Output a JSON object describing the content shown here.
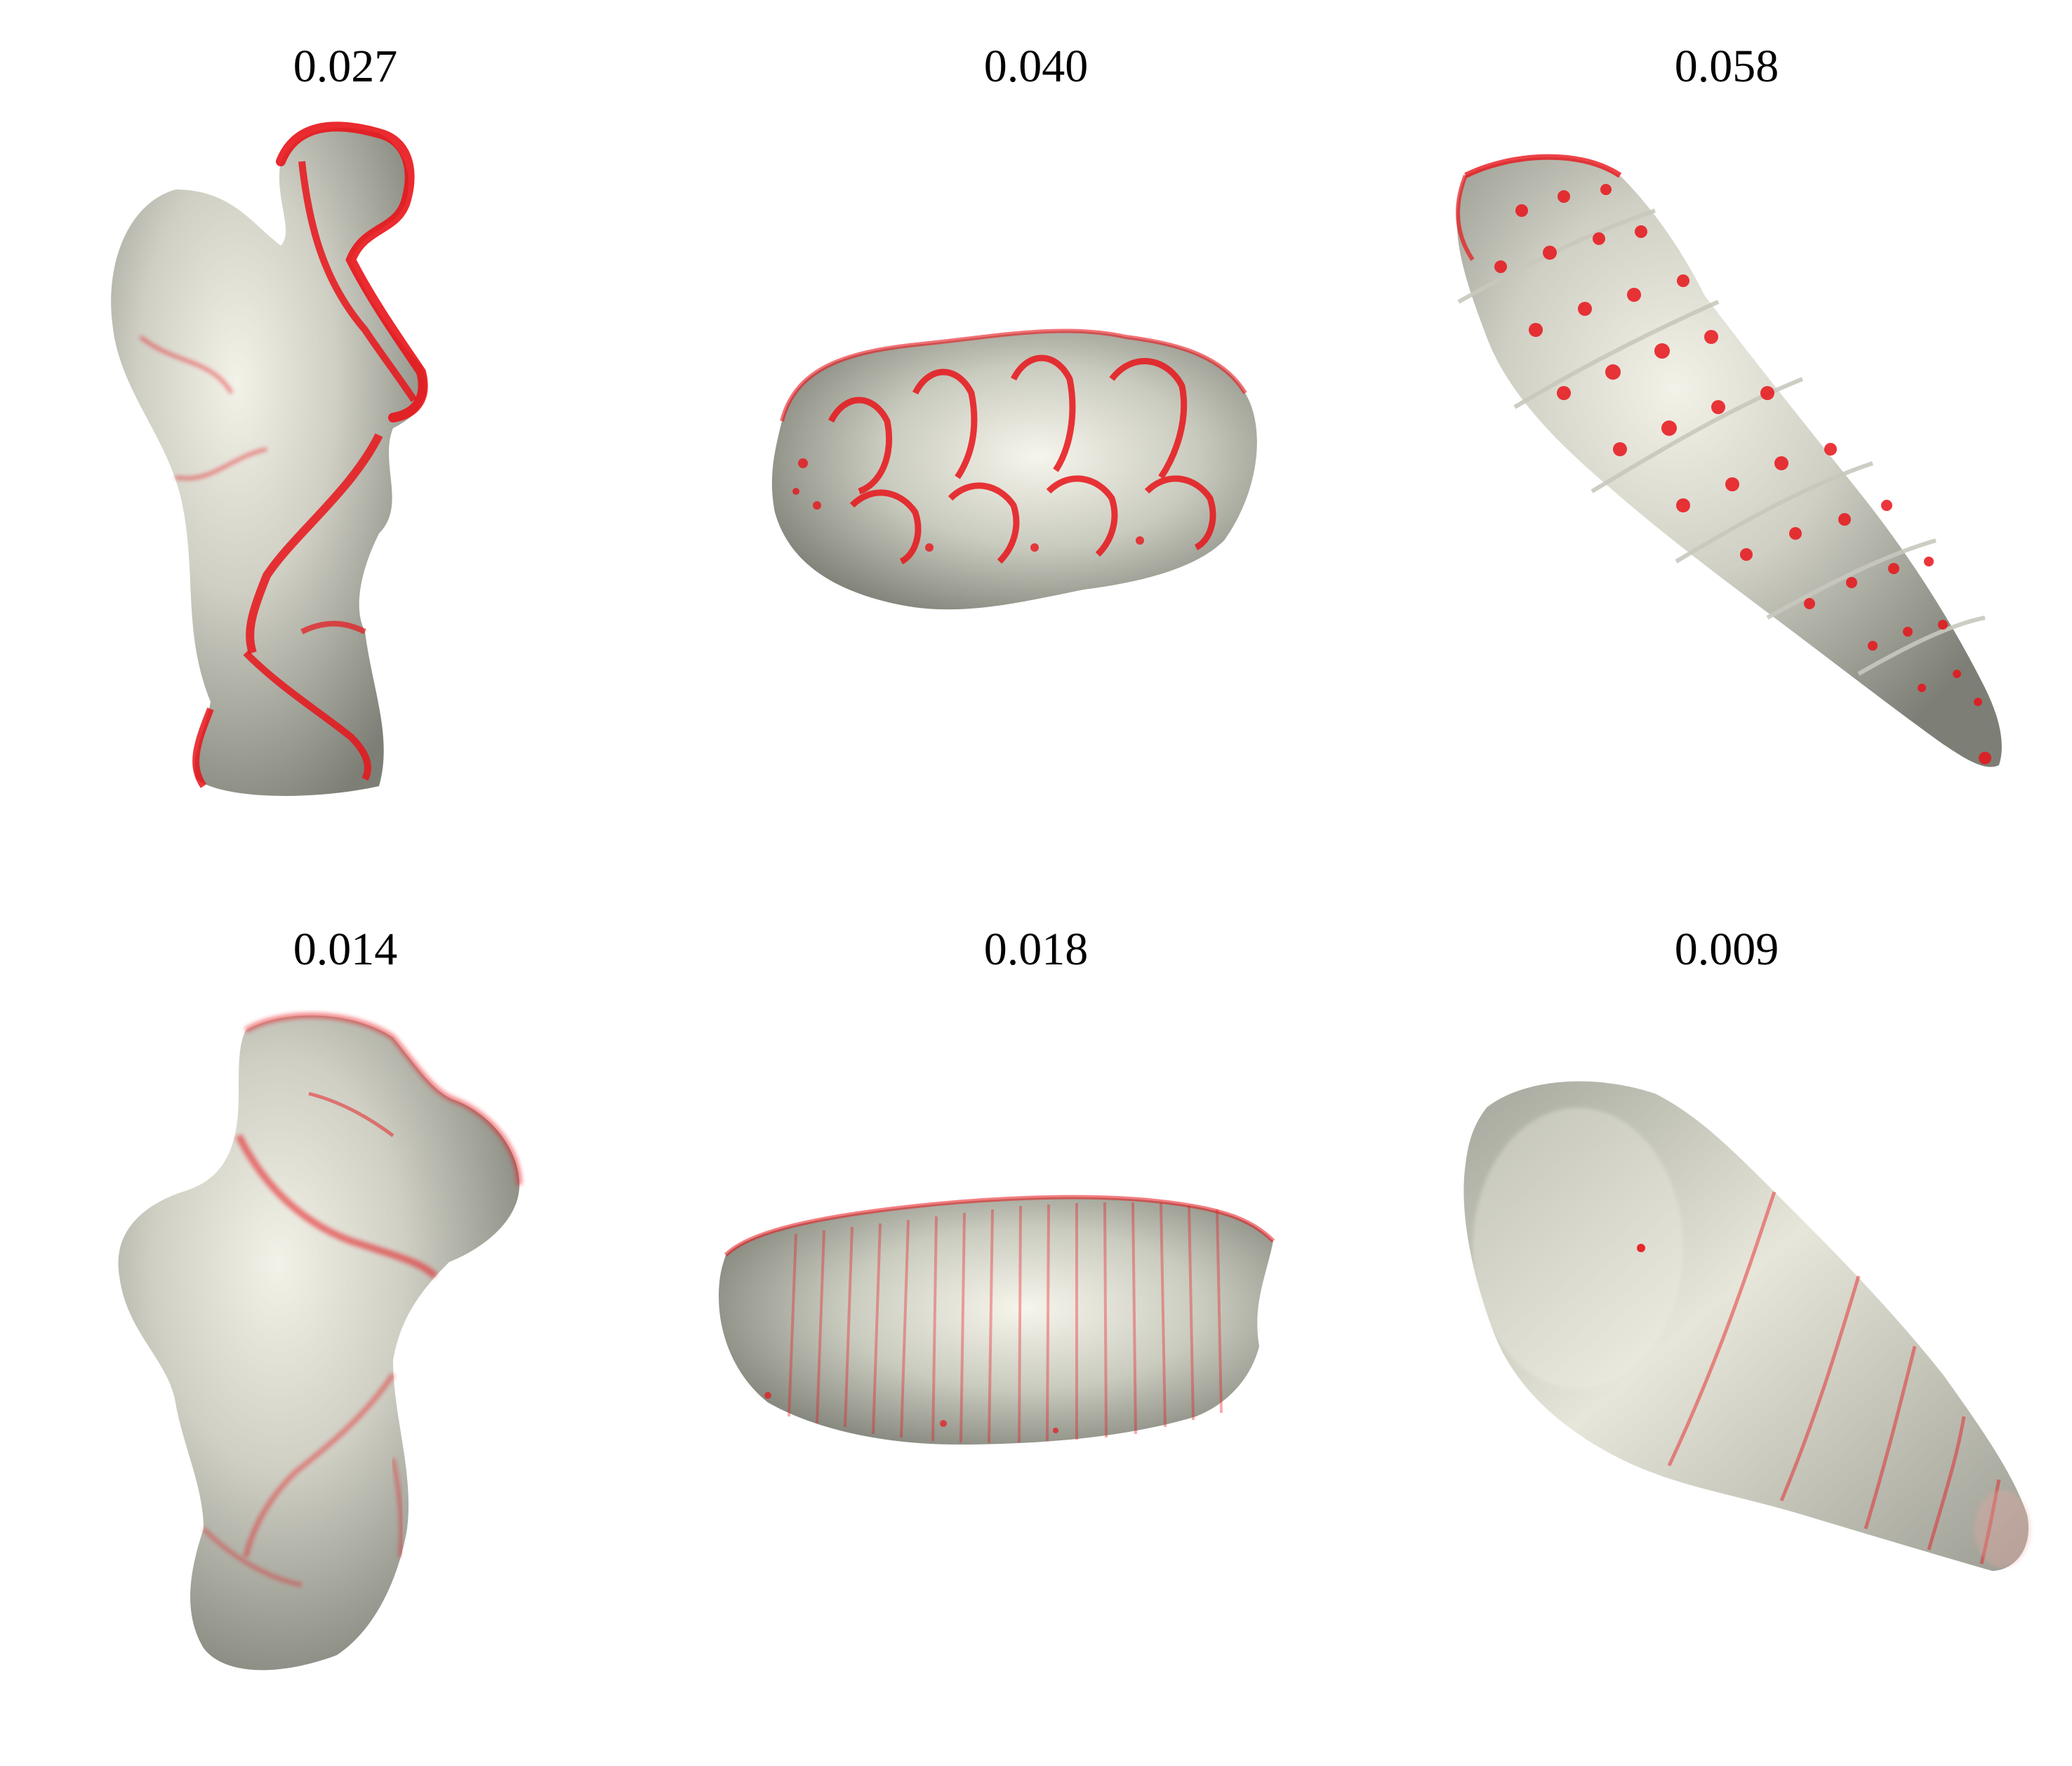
{
  "panels": [
    {
      "id": "top-left",
      "value": "0.027",
      "shape": "bone-vertebra",
      "highlight": "heavy"
    },
    {
      "id": "top-middle",
      "value": "0.040",
      "shape": "molar-tooth",
      "highlight": "heavy"
    },
    {
      "id": "top-right",
      "value": "0.058",
      "shape": "turreted-shell",
      "highlight": "heavy"
    },
    {
      "id": "bottom-left",
      "value": "0.014",
      "shape": "bone-vertebra",
      "highlight": "light"
    },
    {
      "id": "bottom-middle",
      "value": "0.018",
      "shape": "molar-tooth",
      "highlight": "light"
    },
    {
      "id": "bottom-right",
      "value": "0.009",
      "shape": "smooth-shell",
      "highlight": "minimal"
    }
  ],
  "colors": {
    "surface_light": "#e9e8de",
    "surface_dark": "#8a8c82",
    "highlight": "#e8141a",
    "label": "#000000"
  }
}
